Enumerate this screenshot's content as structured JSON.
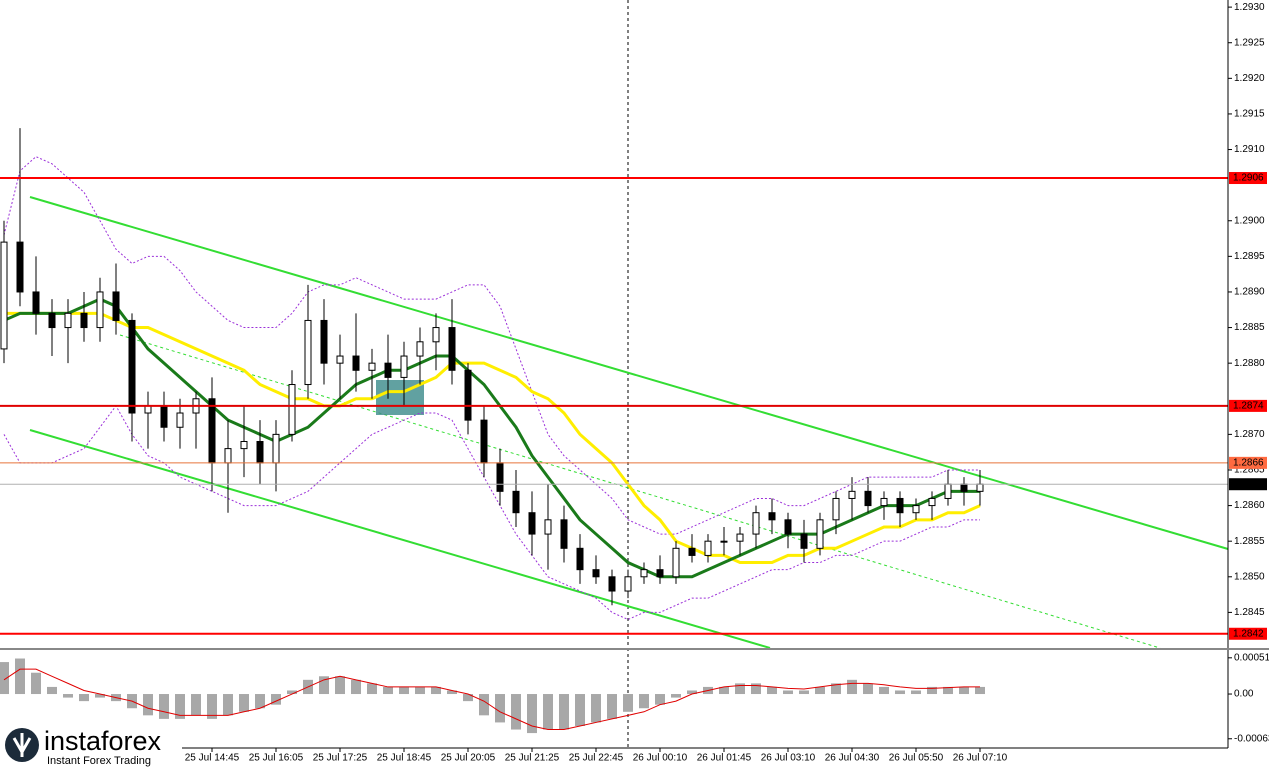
{
  "chart_data": [
    {
      "type": "candlestick",
      "categories": [
        null,
        null,
        null,
        null,
        null,
        null,
        null,
        null,
        null,
        null,
        null,
        null,
        null,
        "25 Jul 14:45",
        null,
        null,
        null,
        "25 Jul 16:05",
        null,
        null,
        null,
        "25 Jul 17:25",
        null,
        null,
        null,
        "25 Jul 18:45",
        null,
        null,
        null,
        "25 Jul 20:05",
        null,
        null,
        null,
        "25 Jul 21:25",
        null,
        null,
        null,
        "25 Jul 22:45",
        null,
        null,
        null,
        "26 Jul 00:10",
        null,
        null,
        null,
        "26 Jul 01:45",
        null,
        null,
        null,
        "26 Jul 03:10",
        null,
        null,
        null,
        "26 Jul 04:30",
        null,
        null,
        null,
        "26 Jul 05:50",
        null,
        null,
        null,
        "26 Jul 07:10"
      ],
      "open": [
        1.2882,
        1.2897,
        1.289,
        1.2887,
        1.2885,
        1.2887,
        1.2885,
        1.289,
        1.2886,
        1.2873,
        1.2874,
        1.2871,
        1.2873,
        1.2875,
        1.2866,
        1.2868,
        1.2869,
        1.2866,
        1.287,
        1.2877,
        1.2886,
        1.288,
        1.2881,
        1.2879,
        1.288,
        1.2878,
        1.2881,
        1.2883,
        1.2885,
        1.2879,
        1.2872,
        1.2866,
        1.2862,
        1.2859,
        1.2856,
        1.2858,
        1.2854,
        1.2851,
        1.285,
        1.2848,
        1.285,
        1.2851,
        1.285,
        1.2854,
        1.2853,
        1.2855,
        1.2855,
        1.2856,
        1.2859,
        1.2858,
        1.2856,
        1.2854,
        1.2858,
        1.2861,
        1.2862,
        1.286,
        1.2861,
        1.2859,
        1.286,
        1.2861,
        1.2863,
        1.2862
      ],
      "high": [
        1.29,
        1.2913,
        1.2895,
        1.2889,
        1.2889,
        1.289,
        1.2892,
        1.2894,
        1.2887,
        1.2876,
        1.2876,
        1.2875,
        1.2876,
        1.2878,
        1.2872,
        1.2874,
        1.2872,
        1.2872,
        1.2879,
        1.2891,
        1.2889,
        1.2884,
        1.2887,
        1.2882,
        1.2884,
        1.2883,
        1.2885,
        1.2887,
        1.2889,
        1.288,
        1.2874,
        1.2868,
        1.2865,
        1.2862,
        1.2863,
        1.286,
        1.2856,
        1.2853,
        1.2851,
        1.2851,
        1.2852,
        1.2853,
        1.2855,
        1.2856,
        1.2856,
        1.2857,
        1.2857,
        1.286,
        1.2861,
        1.2859,
        1.2858,
        1.2859,
        1.2862,
        1.2864,
        1.2864,
        1.2862,
        1.2862,
        1.2861,
        1.2862,
        1.2865,
        1.2864,
        1.2865
      ],
      "low": [
        1.288,
        1.2888,
        1.2884,
        1.2881,
        1.288,
        1.2883,
        1.2883,
        1.2884,
        1.2869,
        1.2868,
        1.2869,
        1.2868,
        1.2868,
        1.2862,
        1.2859,
        1.2864,
        1.2863,
        1.2862,
        1.2869,
        1.2875,
        1.2877,
        1.2875,
        1.2876,
        1.2875,
        1.2875,
        1.2874,
        1.2877,
        1.2879,
        1.2877,
        1.287,
        1.2864,
        1.286,
        1.2857,
        1.2853,
        1.2851,
        1.2852,
        1.2849,
        1.2849,
        1.2846,
        1.2847,
        1.2849,
        1.2849,
        1.2849,
        1.2852,
        1.2852,
        1.2853,
        1.2853,
        1.2854,
        1.2856,
        1.2854,
        1.2852,
        1.2853,
        1.2856,
        1.2858,
        1.2859,
        1.2858,
        1.2857,
        1.2858,
        1.2858,
        1.286,
        1.286,
        1.286
      ],
      "close": [
        1.2897,
        1.289,
        1.2887,
        1.2885,
        1.2887,
        1.2885,
        1.289,
        1.2886,
        1.2873,
        1.2874,
        1.2871,
        1.2873,
        1.2875,
        1.2866,
        1.2868,
        1.2869,
        1.2866,
        1.287,
        1.2877,
        1.2886,
        1.288,
        1.2881,
        1.2879,
        1.288,
        1.2878,
        1.2881,
        1.2883,
        1.2885,
        1.2879,
        1.2872,
        1.2866,
        1.2862,
        1.2859,
        1.2856,
        1.2858,
        1.2854,
        1.2851,
        1.285,
        1.2848,
        1.285,
        1.2851,
        1.285,
        1.2854,
        1.2853,
        1.2855,
        1.2855,
        1.2856,
        1.2859,
        1.2858,
        1.2856,
        1.2854,
        1.2858,
        1.2861,
        1.2862,
        1.286,
        1.2861,
        1.2859,
        1.286,
        1.2861,
        1.2863,
        1.2862,
        1.2863
      ],
      "color": "#000000",
      "up_fill": "#ffffff",
      "series": [
        {
          "color": "#9b30d9",
          "style": "dotted",
          "width": 1,
          "values": [
            1.2898,
            1.2907,
            1.2909,
            1.2908,
            1.2906,
            1.2904,
            1.29,
            1.2896,
            1.2894,
            1.2895,
            1.2895,
            1.2893,
            1.289,
            1.2888,
            1.2886,
            1.2885,
            1.2885,
            1.2885,
            1.2887,
            1.289,
            1.2891,
            1.2891,
            1.2892,
            1.2891,
            1.289,
            1.2889,
            1.2889,
            1.2889,
            1.289,
            1.2891,
            1.2891,
            1.2888,
            1.2882,
            1.2876,
            1.287,
            1.2867,
            1.2865,
            1.2863,
            1.2861,
            1.2858,
            1.2857,
            1.2856,
            1.2856,
            1.2857,
            1.2858,
            1.2859,
            1.286,
            1.2861,
            1.2861,
            1.286,
            1.286,
            1.2861,
            1.2862,
            1.2863,
            1.2864,
            1.2864,
            1.2864,
            1.2864,
            1.2864,
            1.2865,
            1.2865,
            1.2865
          ]
        },
        {
          "color": "#9b30d9",
          "style": "dotted",
          "width": 1,
          "values": [
            1.287,
            1.2866,
            1.2866,
            1.2866,
            1.2867,
            1.2868,
            1.2871,
            1.2874,
            1.287,
            1.2867,
            1.2866,
            1.2864,
            1.2863,
            1.2862,
            1.2861,
            1.286,
            1.286,
            1.286,
            1.2861,
            1.2862,
            1.2864,
            1.2866,
            1.2868,
            1.287,
            1.2871,
            1.2872,
            1.2873,
            1.2873,
            1.2872,
            1.2868,
            1.2864,
            1.286,
            1.2856,
            1.2853,
            1.285,
            1.2849,
            1.2848,
            1.2847,
            1.2845,
            1.2844,
            1.2845,
            1.2845,
            1.2846,
            1.2847,
            1.2847,
            1.2848,
            1.2849,
            1.285,
            1.2851,
            1.2851,
            1.2852,
            1.2852,
            1.2853,
            1.2853,
            1.2854,
            1.2855,
            1.2855,
            1.2856,
            1.2857,
            1.2857,
            1.2858,
            1.2858
          ]
        },
        {
          "color": "#ffee00",
          "style": "solid",
          "width": 3,
          "values": [
            1.2887,
            1.2887,
            1.2887,
            1.2887,
            1.2887,
            1.2887,
            1.2887,
            1.2886,
            1.2885,
            1.2885,
            1.2884,
            1.2883,
            1.2882,
            1.2881,
            1.288,
            1.2879,
            1.2877,
            1.2876,
            1.2875,
            1.2875,
            1.2874,
            1.2874,
            1.2875,
            1.2875,
            1.2876,
            1.2876,
            1.2877,
            1.2878,
            1.288,
            1.288,
            1.288,
            1.2879,
            1.2878,
            1.2876,
            1.2875,
            1.2873,
            1.287,
            1.2868,
            1.2866,
            1.2863,
            1.286,
            1.2858,
            1.2855,
            1.2854,
            1.2853,
            1.2853,
            1.2852,
            1.2852,
            1.2852,
            1.2853,
            1.2853,
            1.2854,
            1.2854,
            1.2855,
            1.2856,
            1.2857,
            1.2857,
            1.2858,
            1.2858,
            1.2859,
            1.2859,
            1.286
          ]
        },
        {
          "color": "#1a7a1a",
          "style": "solid",
          "width": 3,
          "values": [
            1.2886,
            1.2887,
            1.2887,
            1.2887,
            1.2887,
            1.2888,
            1.2889,
            1.2888,
            1.2885,
            1.2882,
            1.288,
            1.2878,
            1.2876,
            1.2874,
            1.2872,
            1.2871,
            1.287,
            1.2869,
            1.287,
            1.2871,
            1.2873,
            1.2875,
            1.2877,
            1.2878,
            1.2879,
            1.2879,
            1.288,
            1.2881,
            1.2881,
            1.2879,
            1.2877,
            1.2874,
            1.2871,
            1.2867,
            1.2864,
            1.2861,
            1.2858,
            1.2856,
            1.2854,
            1.2852,
            1.2851,
            1.285,
            1.285,
            1.285,
            1.2851,
            1.2852,
            1.2853,
            1.2854,
            1.2855,
            1.2856,
            1.2856,
            1.2856,
            1.2857,
            1.2858,
            1.2859,
            1.286,
            1.286,
            1.286,
            1.2861,
            1.2862,
            1.2862,
            1.2862
          ]
        }
      ],
      "ylim": [
        1.284,
        1.2931
      ],
      "yticks": [
        {
          "value": 1.293,
          "label": "1.2930"
        },
        1.2925,
        {
          "value": 1.292,
          "label": "1.2920"
        },
        1.2915,
        {
          "value": 1.291,
          "label": "1.2910"
        },
        {
          "value": 1.29,
          "label": "1.2900"
        },
        1.2895,
        {
          "value": 1.289,
          "label": "1.2890"
        },
        1.2885,
        {
          "value": 1.288,
          "label": "1.2880"
        },
        {
          "value": 1.287,
          "label": "1.2870"
        },
        1.2865,
        {
          "value": 1.286,
          "label": "1.2860"
        },
        1.2855,
        {
          "value": 1.285,
          "label": "1.2850"
        },
        1.2845
      ],
      "levels": [
        {
          "value": 1.2906,
          "color": "#ff0000",
          "width": 2,
          "label_fill": "#ff0000",
          "label_color": "#ffffff"
        },
        {
          "value": 1.2874,
          "color": "#e00000",
          "width": 2,
          "label_fill": "#ff0000",
          "label_color": "#ffffff"
        },
        {
          "value": 1.2842,
          "color": "#ff0000",
          "width": 2,
          "label_fill": "#ff0000",
          "label_color": "#ffffff"
        },
        {
          "value": 1.2866,
          "color": "#e8743b",
          "width": 1,
          "label_fill": "#ff6a40",
          "label_color": "#000000"
        },
        {
          "value": 1.2863,
          "color": "#b0b0b0",
          "width": 1,
          "label_fill": "#000000",
          "label_color": "#ffffff"
        }
      ]
    },
    {
      "type": "macd",
      "values": [
        0.00045,
        0.0005,
        0.0003,
        0.0001,
        -5e-05,
        -0.0001,
        -5e-05,
        -0.0001,
        -0.0002,
        -0.0003,
        -0.00035,
        -0.00035,
        -0.0003,
        -0.00035,
        -0.0003,
        -0.00025,
        -0.0002,
        -0.00015,
        5e-05,
        0.0002,
        0.00025,
        0.00025,
        0.0002,
        0.00015,
        0.0001,
        0.0001,
        0.0001,
        0.0001,
        5e-05,
        -0.0001,
        -0.0003,
        -0.0004,
        -0.0005,
        -0.00055,
        -0.0005,
        -0.0005,
        -0.00045,
        -0.0004,
        -0.00035,
        -0.00025,
        -0.0002,
        -0.00015,
        -5e-05,
        5e-05,
        0.0001,
        0.0001,
        0.00015,
        0.00015,
        0.0001,
        5e-05,
        5e-05,
        0.0001,
        0.00015,
        0.0002,
        0.00015,
        0.0001,
        5e-05,
        5e-05,
        0.0001,
        0.0001,
        0.0001,
        0.0001
      ],
      "color": "#a8a8a8",
      "series": [
        {
          "color": "#e00000",
          "style": "solid",
          "width": 1,
          "values": [
            0.0002,
            0.00035,
            0.00035,
            0.00025,
            0.00015,
            5e-05,
            0,
            -5e-05,
            -0.0001,
            -0.0002,
            -0.00025,
            -0.0003,
            -0.0003,
            -0.0003,
            -0.0003,
            -0.00025,
            -0.0002,
            -0.0001,
            0,
            0.0001,
            0.0002,
            0.00025,
            0.0002,
            0.00015,
            0.0001,
            0.0001,
            0.0001,
            0.0001,
            5e-05,
            0,
            -0.0001,
            -0.00025,
            -0.00035,
            -0.00045,
            -0.0005,
            -0.0005,
            -0.00045,
            -0.0004,
            -0.00035,
            -0.0003,
            -0.00025,
            -0.00015,
            -0.0001,
            0,
            5e-05,
            0.0001,
            0.00012,
            0.00012,
            0.0001,
            8e-05,
            7e-05,
            0.0001,
            0.00013,
            0.00015,
            0.00015,
            0.00013,
            0.0001,
            8e-05,
            8e-05,
            9e-05,
            0.0001,
            0.0001
          ]
        }
      ],
      "ylim": [
        -0.00076,
        0.00062
      ],
      "yticks": [
        0.00051,
        {
          "value": 0,
          "label": "0.00"
        },
        -0.00063
      ]
    }
  ],
  "logo": {
    "name": "instaforex",
    "tagline": "Instant Forex Trading"
  }
}
